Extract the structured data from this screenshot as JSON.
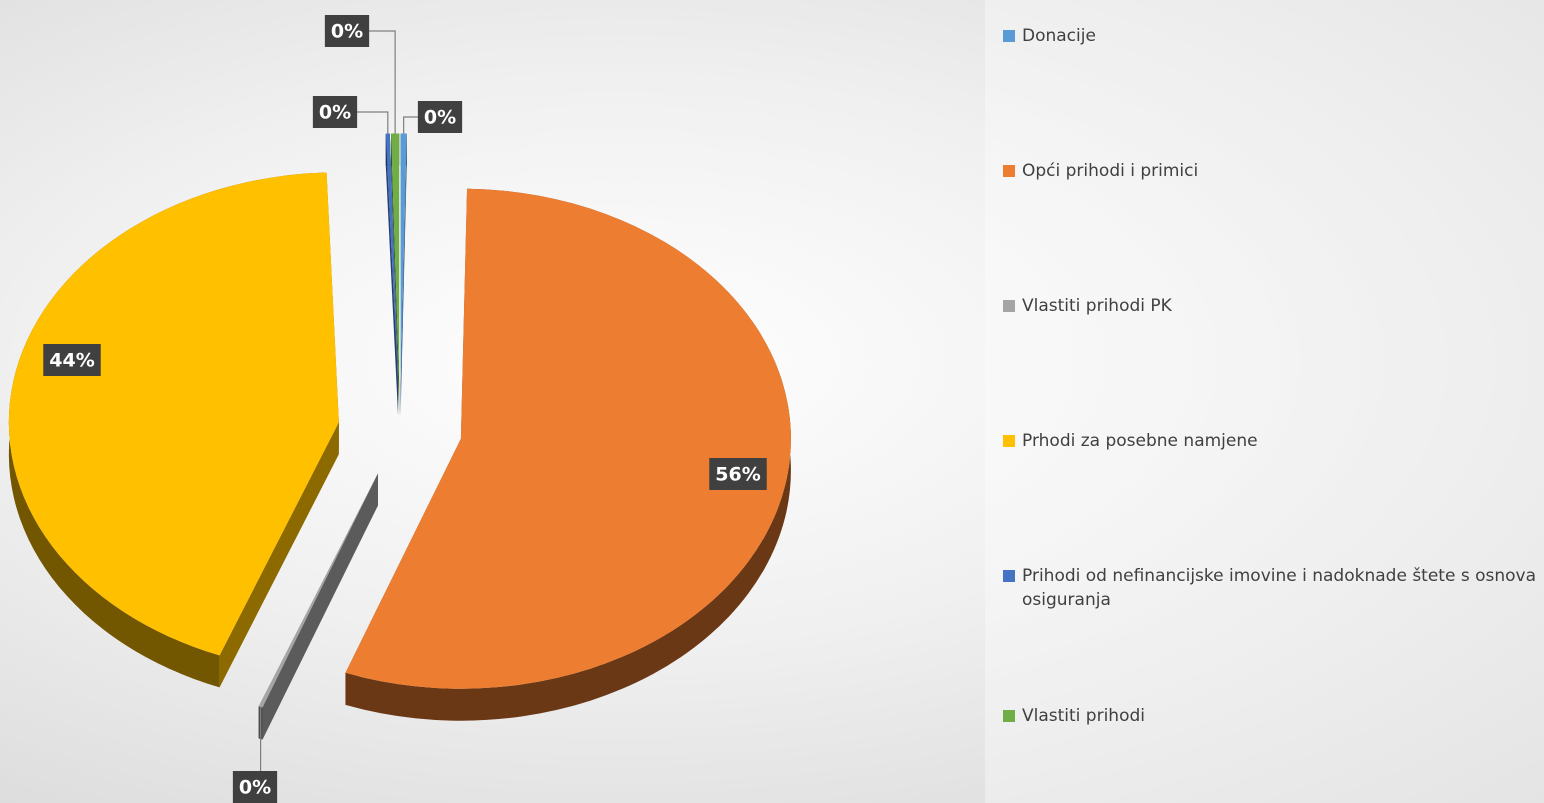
{
  "chart_data": {
    "type": "pie3d",
    "categories": [
      "Donacije",
      "Opći prihodi i primici",
      "Vlastiti prihodi PK",
      "Prhodi za posebne namjene",
      "Prihodi od nefinancijske imovine i nadoknade štete s osnova osiguranja",
      "Vlastiti prihodi"
    ],
    "values": [
      0.3,
      56,
      0.2,
      44,
      0.2,
      0.4
    ],
    "value_labels": [
      "0%",
      "56%",
      "0%",
      "44%",
      "0%",
      "0%"
    ],
    "colors": [
      "#5b9bd5",
      "#ed7d31",
      "#a5a5a5",
      "#ffc000",
      "#4472c4",
      "#70ad47"
    ],
    "legend": "right"
  }
}
